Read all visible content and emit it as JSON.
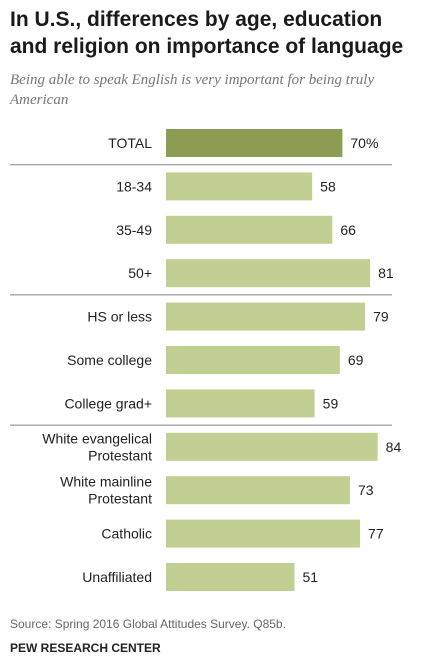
{
  "header": {
    "title": "In U.S., differences by age, education and religion on importance of language",
    "subtitle": "Being able to speak English is very important for being truly American"
  },
  "footer": {
    "source": "Source: Spring 2016 Global Attitudes Survey. Q85b.",
    "brand": "PEW RESEARCH CENTER"
  },
  "colors": {
    "total_bar": "#8c9c52",
    "bar": "#c2cf92",
    "divider": "#888888"
  },
  "chart_data": {
    "type": "bar",
    "orientation": "horizontal",
    "categories": [
      [
        "TOTAL"
      ],
      [
        "18-34"
      ],
      [
        "35-49"
      ],
      [
        "50+"
      ],
      [
        "HS or less"
      ],
      [
        "Some college"
      ],
      [
        "College grad+"
      ],
      [
        "White evangelical",
        "Protestant"
      ],
      [
        "White mainline",
        "Protestant"
      ],
      [
        "Catholic"
      ],
      [
        "Unaffiliated"
      ]
    ],
    "values": [
      70,
      58,
      66,
      81,
      79,
      69,
      59,
      84,
      73,
      77,
      51
    ],
    "value_labels": [
      "70%",
      "58",
      "66",
      "81",
      "79",
      "69",
      "59",
      "84",
      "73",
      "77",
      "51"
    ],
    "groups": [
      {
        "start": 0,
        "end": 0
      },
      {
        "start": 1,
        "end": 3
      },
      {
        "start": 4,
        "end": 6
      },
      {
        "start": 7,
        "end": 10
      }
    ],
    "highlight_index": 0,
    "xlim": [
      0,
      100
    ],
    "grid": false,
    "legend": "none"
  }
}
